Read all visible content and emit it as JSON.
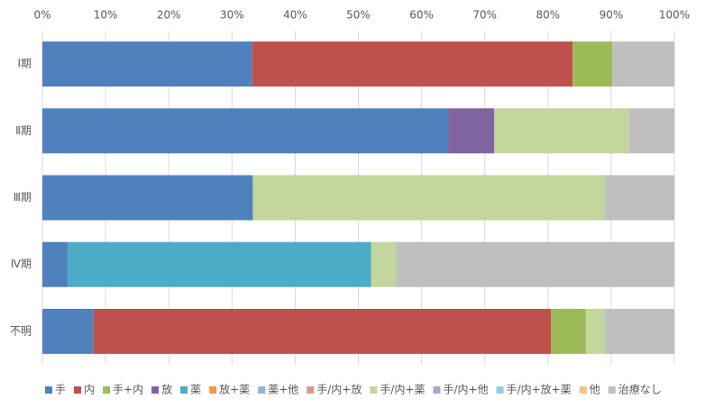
{
  "chart_data": {
    "type": "stacked-bar-horizontal",
    "categories": [
      "Ⅰ期",
      "Ⅱ期",
      "Ⅲ期",
      "Ⅳ期",
      "不明"
    ],
    "series": [
      {
        "name": "手",
        "color": "#4f81bd",
        "values": [
          33.2,
          64.2,
          33.3,
          4,
          8.1
        ]
      },
      {
        "name": "内",
        "color": "#c0504d",
        "values": [
          50.7,
          0,
          0,
          0,
          72.4
        ]
      },
      {
        "name": "手+内",
        "color": "#9bbb59",
        "values": [
          6.3,
          0,
          0,
          0,
          5.5
        ]
      },
      {
        "name": "放",
        "color": "#8064a2",
        "values": [
          0,
          7.3,
          0,
          0,
          0
        ]
      },
      {
        "name": "薬",
        "color": "#4bacc6",
        "values": [
          0,
          0,
          0,
          48,
          0
        ]
      },
      {
        "name": "放+薬",
        "color": "#f79646",
        "values": [
          0,
          0,
          0,
          0,
          0
        ]
      },
      {
        "name": "薬+他",
        "color": "#95b3d7",
        "values": [
          0,
          0,
          0,
          0,
          0
        ]
      },
      {
        "name": "手/内+放",
        "color": "#da9694",
        "values": [
          0,
          0,
          0,
          0,
          0
        ]
      },
      {
        "name": "手/内+薬",
        "color": "#c3d69b",
        "values": [
          0,
          21.4,
          55.6,
          4,
          2.9
        ]
      },
      {
        "name": "手/内+他",
        "color": "#b3a2c7",
        "values": [
          0,
          0,
          0,
          0,
          0
        ]
      },
      {
        "name": "手/内+放+薬",
        "color": "#93cddd",
        "values": [
          0,
          0,
          0,
          0,
          0
        ]
      },
      {
        "name": "他",
        "color": "#fac090",
        "values": [
          0,
          0,
          0,
          0,
          0
        ]
      },
      {
        "name": "治療なし",
        "color": "#bfbfbf",
        "values": [
          9.8,
          7.1,
          11.1,
          44,
          11.1
        ]
      }
    ],
    "xlim": [
      0,
      100
    ],
    "xticks": [
      {
        "value": 0,
        "label": "0%"
      },
      {
        "value": 10,
        "label": "10%"
      },
      {
        "value": 20,
        "label": "20%"
      },
      {
        "value": 30,
        "label": "30%"
      },
      {
        "value": 40,
        "label": "40%"
      },
      {
        "value": 50,
        "label": "50%"
      },
      {
        "value": 60,
        "label": "60%"
      },
      {
        "value": 70,
        "label": "70%"
      },
      {
        "value": 80,
        "label": "80%"
      },
      {
        "value": 90,
        "label": "90%"
      },
      {
        "value": 100,
        "label": "100%"
      }
    ],
    "grid": true,
    "legend": "bottom"
  }
}
